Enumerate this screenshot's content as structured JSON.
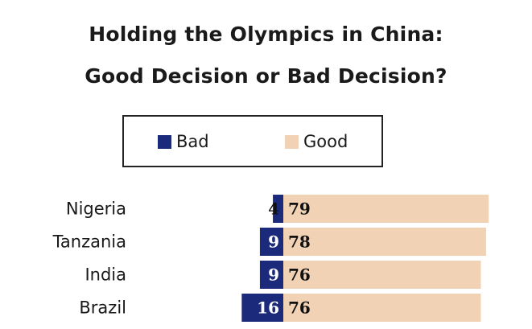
{
  "chart_data": {
    "type": "bar",
    "title": "Holding the Olympics in China:",
    "subtitle": "Good Decision or Bad Decision?",
    "categories": [
      "Nigeria",
      "Tanzania",
      "India",
      "Brazil"
    ],
    "series": [
      {
        "name": "Bad",
        "values": [
          4,
          9,
          9,
          16
        ],
        "color": "#1b2a7a"
      },
      {
        "name": "Good",
        "values": [
          79,
          78,
          76,
          76
        ],
        "color": "#f1d2b5"
      }
    ],
    "stacked": "diverging",
    "legend_position": "top-center",
    "grid": false
  }
}
